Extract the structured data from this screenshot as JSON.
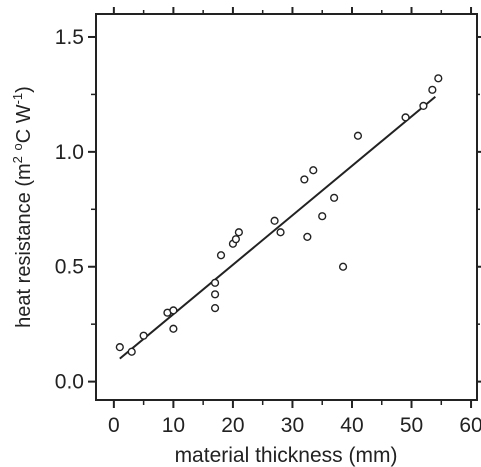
{
  "chart_data": {
    "type": "scatter",
    "title": "",
    "xlabel": "material thickness (mm)",
    "ylabel": {
      "prefix": "heat resistance (m",
      "sup1": "2",
      "space": " ",
      "sup2": "o",
      "middle": "C W",
      "sup3": "-1",
      "suffix": ")"
    },
    "xlim": [
      -3,
      61
    ],
    "ylim": [
      -0.08,
      1.6
    ],
    "x_ticks": [
      0,
      10,
      20,
      30,
      40,
      50,
      60
    ],
    "x_tick_labels": [
      "0",
      "10",
      "20",
      "30",
      "40",
      "50",
      "60"
    ],
    "y_ticks": [
      0.0,
      0.5,
      1.0,
      1.5
    ],
    "y_tick_labels": [
      "0.0",
      "0.5",
      "1.0",
      "1.5"
    ],
    "grid": false,
    "legend": "none",
    "series": [
      {
        "kind": "points",
        "marker": "open-circle",
        "x": [
          1,
          3,
          5,
          9,
          10,
          10,
          17,
          17,
          17,
          18,
          20,
          20.5,
          21,
          27,
          28,
          32,
          32.5,
          33.5,
          35,
          37,
          38.5,
          41,
          49,
          52,
          53.5,
          54.5
        ],
        "y": [
          0.15,
          0.13,
          0.2,
          0.3,
          0.31,
          0.23,
          0.43,
          0.38,
          0.32,
          0.55,
          0.6,
          0.62,
          0.65,
          0.7,
          0.65,
          0.88,
          0.63,
          0.92,
          0.72,
          0.8,
          0.5,
          1.07,
          1.15,
          1.2,
          1.27,
          1.32
        ]
      },
      {
        "kind": "fit-line",
        "x": [
          1,
          54
        ],
        "y": [
          0.1,
          1.24
        ]
      }
    ]
  }
}
